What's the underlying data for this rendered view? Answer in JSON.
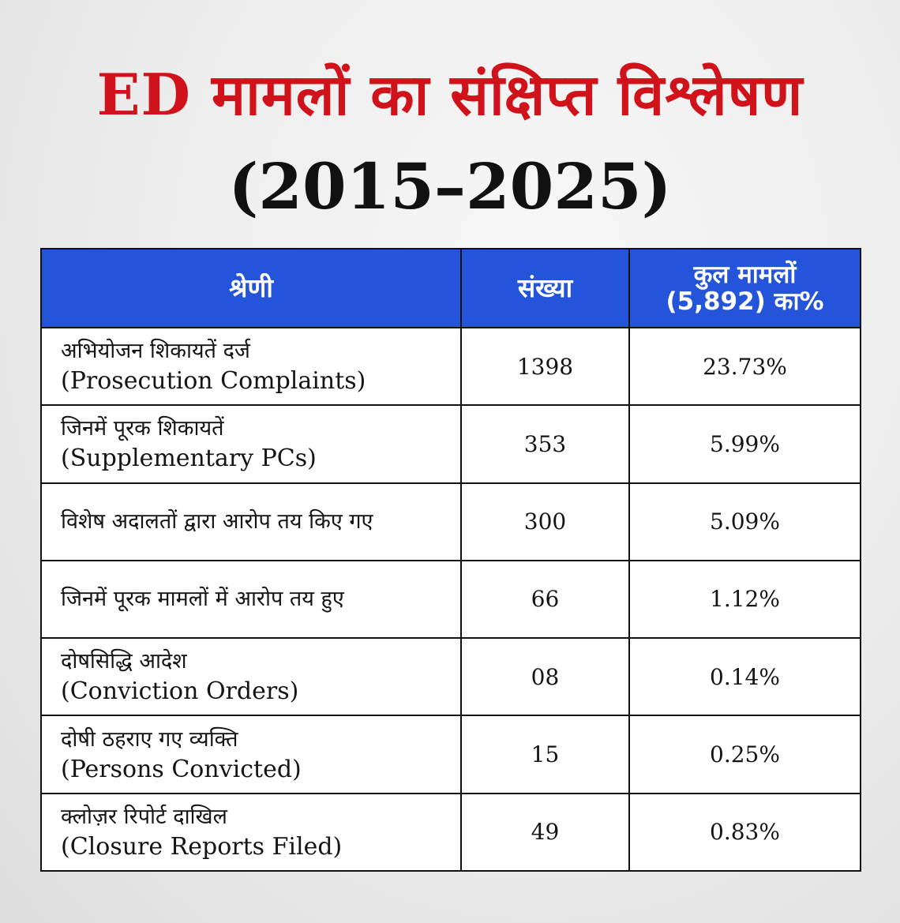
{
  "header": {
    "title": "ED मामलों का संक्षिप्त विश्लेषण",
    "subtitle": "(2015–2025)"
  },
  "table": {
    "columns": {
      "category": "श्रेणी",
      "count": "संख्या",
      "percent_line1": "कुल मामलों",
      "percent_line2": "(5,892) का%"
    },
    "rows": [
      {
        "hindi": "अभियोजन शिकायतें दर्ज",
        "english": "(Prosecution Complaints)",
        "count": "1398",
        "percent": "23.73%"
      },
      {
        "hindi": "जिनमें पूरक शिकायतें",
        "english": "(Supplementary PCs)",
        "count": "353",
        "percent": "5.99%"
      },
      {
        "hindi": "विशेष अदालतों द्वारा आरोप तय किए गए",
        "english": "",
        "count": "300",
        "percent": "5.09%"
      },
      {
        "hindi": "जिनमें पूरक मामलों में आरोप तय हुए",
        "english": "",
        "count": "66",
        "percent": "1.12%"
      },
      {
        "hindi": "दोषसिद्धि आदेश",
        "english": "(Conviction Orders)",
        "count": "08",
        "percent": "0.14%"
      },
      {
        "hindi": "दोषी ठहराए गए व्यक्ति",
        "english": "(Persons Convicted)",
        "count": "15",
        "percent": "0.25%"
      },
      {
        "hindi": "क्लोज़र रिपोर्ट दाखिल",
        "english": "(Closure Reports Filed)",
        "count": "49",
        "percent": "0.83%"
      }
    ]
  },
  "colors": {
    "title_red": "#d0121b",
    "header_blue": "#2354d9",
    "text_dark": "#111111",
    "background": "#ececec"
  }
}
